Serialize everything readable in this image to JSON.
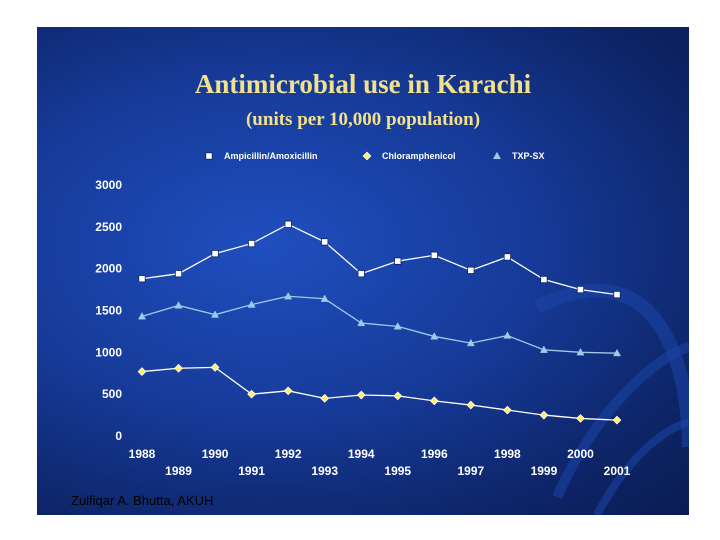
{
  "chart_data": {
    "type": "line",
    "title": "Antimicrobial use in Karachi",
    "subtitle": "(units per 10,000 population)",
    "xlabel": "",
    "ylabel": "",
    "ylim": [
      0,
      3000
    ],
    "yticks": [
      "3000",
      "2500",
      "2000",
      "1500",
      "1000",
      "500",
      "0"
    ],
    "x": [
      "1988",
      "1989",
      "1990",
      "1991",
      "1992",
      "1993",
      "1994",
      "1995",
      "1996",
      "1997",
      "1998",
      "1999",
      "2000",
      "2001"
    ],
    "legend_position": "top",
    "series": [
      {
        "name": "Ampicillin/Amoxicillin",
        "color": "#ffffff",
        "marker": "square",
        "values": [
          1880,
          1940,
          2180,
          2300,
          2530,
          2320,
          1940,
          2090,
          2160,
          1980,
          2140,
          1870,
          1750,
          1690
        ]
      },
      {
        "name": "Chloramphenicol",
        "color": "#ffffff",
        "marker": "diamond",
        "values": [
          770,
          810,
          820,
          500,
          540,
          450,
          490,
          480,
          420,
          370,
          310,
          250,
          210,
          190
        ]
      },
      {
        "name": "TXP-SX",
        "color": "#9ec9e8",
        "marker": "triangle",
        "values": [
          1430,
          1560,
          1450,
          1570,
          1670,
          1640,
          1350,
          1310,
          1190,
          1110,
          1200,
          1030,
          1000,
          990
        ]
      }
    ]
  },
  "footer": {
    "credit": "Zulfiqar A. Bhutta, AKUH"
  }
}
